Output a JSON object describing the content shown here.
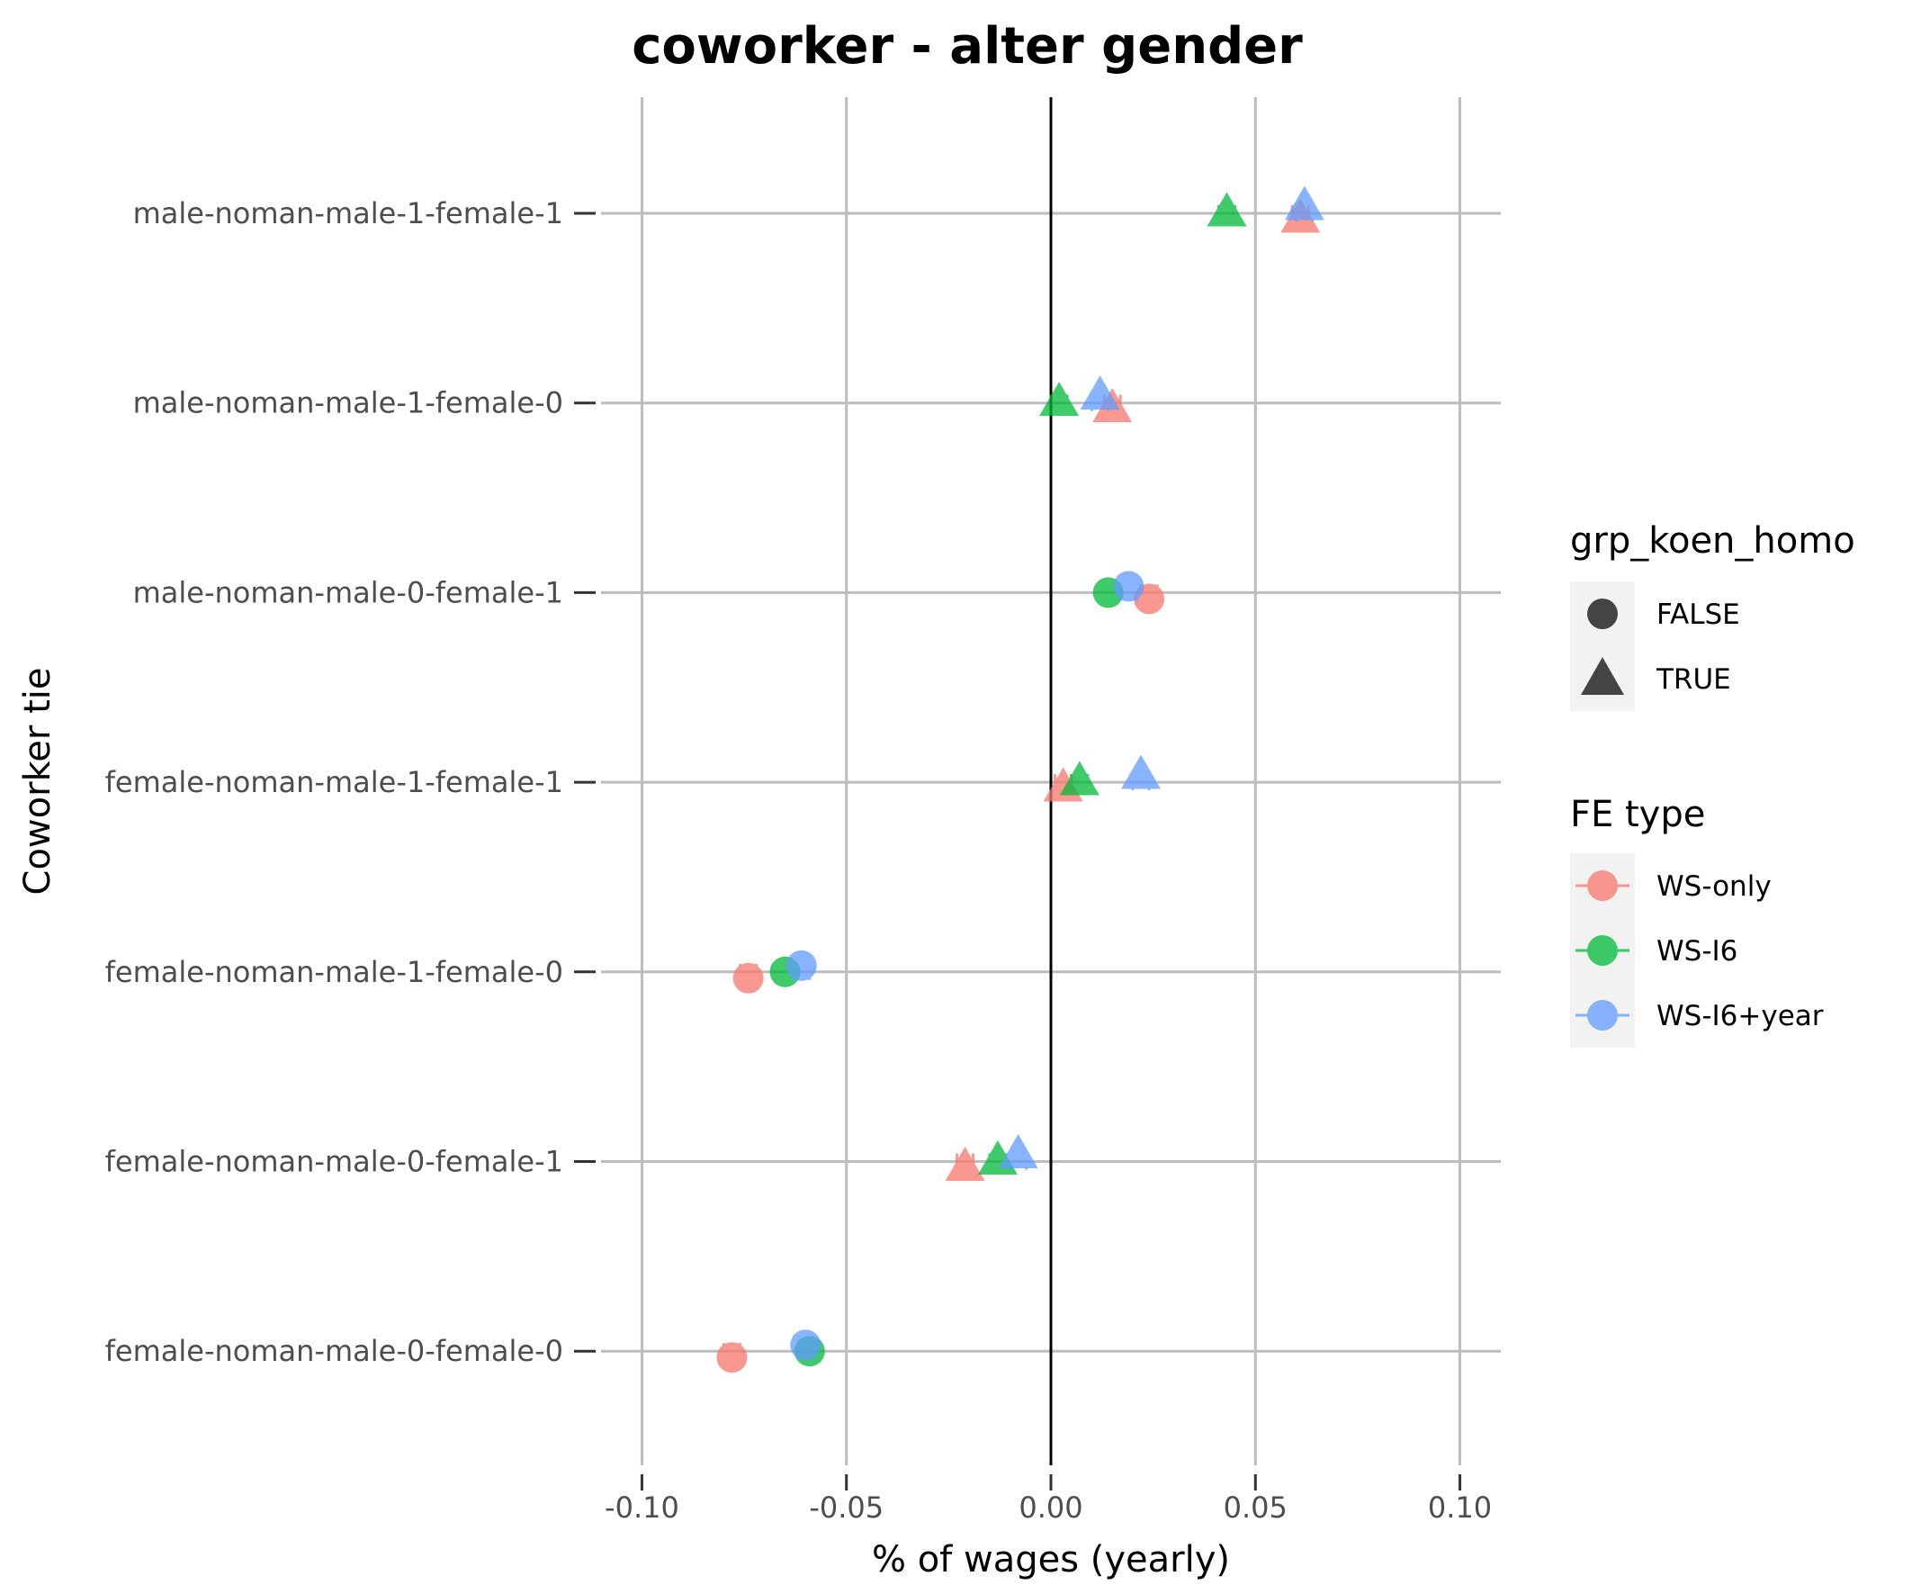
{
  "chart_data": {
    "type": "scatter",
    "title": "coworker - alter gender",
    "xlabel": "% of wages (yearly)",
    "ylabel": "Coworker tie",
    "xlim": [
      -0.11,
      0.11
    ],
    "xticks": [
      -0.1,
      -0.05,
      0.0,
      0.05,
      0.1
    ],
    "xtick_labels": [
      "-0.10",
      "-0.05",
      "0.00",
      "0.05",
      "0.10"
    ],
    "grid": true,
    "reference_line_x": 0,
    "categories": [
      "male-noman-male-1-female-1",
      "male-noman-male-1-female-0",
      "male-noman-male-0-female-1",
      "female-noman-male-1-female-1",
      "female-noman-male-1-female-0",
      "female-noman-male-0-female-1",
      "female-noman-male-0-female-0"
    ],
    "shape_legend": {
      "title": "grp_koen_homo",
      "entries": [
        {
          "label": "FALSE",
          "shape": "circle"
        },
        {
          "label": "TRUE",
          "shape": "triangle"
        }
      ]
    },
    "color_legend": {
      "title": "FE type",
      "entries": [
        {
          "label": "WS-only",
          "color": "#F8766D"
        },
        {
          "label": "WS-I6",
          "color": "#00BA38"
        },
        {
          "label": "WS-I6+year",
          "color": "#619CFF"
        }
      ]
    },
    "legend_position": "right",
    "series": [
      {
        "name": "WS-only",
        "color": "#F8766D",
        "points": [
          {
            "category": "male-noman-male-1-female-1",
            "x": 0.061,
            "shape": "triangle"
          },
          {
            "category": "male-noman-male-1-female-0",
            "x": 0.015,
            "shape": "triangle"
          },
          {
            "category": "male-noman-male-0-female-1",
            "x": 0.024,
            "shape": "circle"
          },
          {
            "category": "female-noman-male-1-female-1",
            "x": 0.003,
            "shape": "triangle"
          },
          {
            "category": "female-noman-male-1-female-0",
            "x": -0.074,
            "shape": "circle"
          },
          {
            "category": "female-noman-male-0-female-1",
            "x": -0.021,
            "shape": "triangle"
          },
          {
            "category": "female-noman-male-0-female-0",
            "x": -0.078,
            "shape": "circle"
          }
        ]
      },
      {
        "name": "WS-I6",
        "color": "#00BA38",
        "points": [
          {
            "category": "male-noman-male-1-female-1",
            "x": 0.043,
            "shape": "triangle"
          },
          {
            "category": "male-noman-male-1-female-0",
            "x": 0.002,
            "shape": "triangle"
          },
          {
            "category": "male-noman-male-0-female-1",
            "x": 0.014,
            "shape": "circle"
          },
          {
            "category": "female-noman-male-1-female-1",
            "x": 0.007,
            "shape": "triangle"
          },
          {
            "category": "female-noman-male-1-female-0",
            "x": -0.065,
            "shape": "circle"
          },
          {
            "category": "female-noman-male-0-female-1",
            "x": -0.013,
            "shape": "triangle"
          },
          {
            "category": "female-noman-male-0-female-0",
            "x": -0.059,
            "shape": "circle"
          }
        ]
      },
      {
        "name": "WS-I6+year",
        "color": "#619CFF",
        "points": [
          {
            "category": "male-noman-male-1-female-1",
            "x": 0.062,
            "shape": "triangle"
          },
          {
            "category": "male-noman-male-1-female-0",
            "x": 0.012,
            "shape": "triangle"
          },
          {
            "category": "male-noman-male-0-female-1",
            "x": 0.019,
            "shape": "circle"
          },
          {
            "category": "female-noman-male-1-female-1",
            "x": 0.022,
            "shape": "triangle"
          },
          {
            "category": "female-noman-male-1-female-0",
            "x": -0.061,
            "shape": "circle"
          },
          {
            "category": "female-noman-male-0-female-1",
            "x": -0.008,
            "shape": "triangle"
          },
          {
            "category": "female-noman-male-0-female-0",
            "x": -0.06,
            "shape": "circle"
          }
        ]
      }
    ]
  }
}
